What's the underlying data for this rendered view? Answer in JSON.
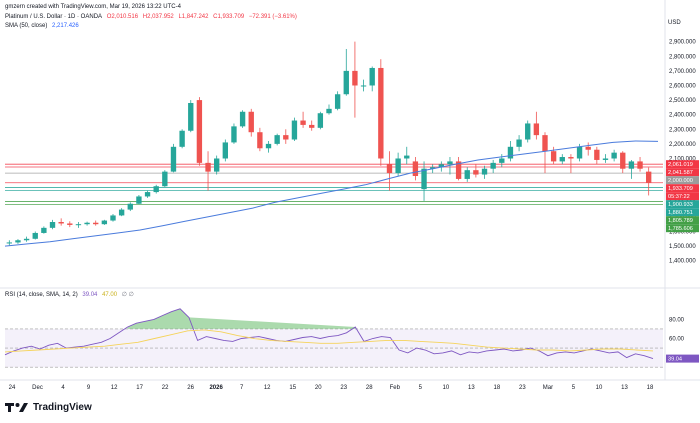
{
  "header": {
    "created_by": "gmzern created with TradingView.com, Mar 19, 2026 13:22 UTC-4",
    "symbol": "Platinum / U.S. Dollar · 1D · OANDA",
    "ohlc": {
      "open": "O2,010.516",
      "high": "H2,037.952",
      "low": "L1,847.242",
      "close": "C1,933.709",
      "change": "−72.391 (−3.61%)"
    },
    "sma_label": "SMA (50, close)",
    "sma_value": "2,217.426",
    "rsi_label": "RSI (14, close, SMA, 14, 2)",
    "rsi_value": "39.04",
    "rsi_sma_value": "47.00",
    "rsi_extra": "∅ ∅"
  },
  "currency": "USD",
  "brand": "TradingView",
  "colors": {
    "up": "#26a69a",
    "down": "#ef5350",
    "sma": "#4a7bdc",
    "rsi": "#7e57c2",
    "rsi_sma": "#f5d35a"
  },
  "chart_data": {
    "type": "candlestick",
    "price_axis_ticks": [
      1400,
      1500,
      1600,
      1700,
      1800,
      1900,
      2000,
      2100,
      2200,
      2300,
      2400,
      2500,
      2600,
      2700,
      2800,
      2900
    ],
    "price_axis_tick_labels": [
      "1,400.000",
      "1,500.000",
      "1,600.000",
      "1,700.000",
      "1,800.000",
      "1,900.000",
      "2,000.000",
      "2,100.000",
      "2,200.000",
      "2,300.000",
      "2,400.000",
      "2,500.000",
      "2,600.000",
      "2,700.000",
      "2,800.000",
      "2,900.000"
    ],
    "ylim": [
      1350,
      2980
    ],
    "time_axis_labels": [
      "24",
      "Dec",
      "4",
      "9",
      "12",
      "17",
      "22",
      "26",
      "2026",
      "7",
      "12",
      "15",
      "20",
      "23",
      "28",
      "Feb",
      "5",
      "10",
      "13",
      "18",
      "23",
      "Mar",
      "5",
      "10",
      "13",
      "18"
    ],
    "candles": [
      {
        "o": 1520,
        "h": 1540,
        "l": 1505,
        "c": 1525
      },
      {
        "o": 1525,
        "h": 1548,
        "l": 1515,
        "c": 1540
      },
      {
        "o": 1540,
        "h": 1565,
        "l": 1530,
        "c": 1550
      },
      {
        "o": 1550,
        "h": 1600,
        "l": 1545,
        "c": 1590
      },
      {
        "o": 1590,
        "h": 1635,
        "l": 1585,
        "c": 1625
      },
      {
        "o": 1625,
        "h": 1680,
        "l": 1615,
        "c": 1665
      },
      {
        "o": 1665,
        "h": 1690,
        "l": 1640,
        "c": 1655
      },
      {
        "o": 1655,
        "h": 1670,
        "l": 1630,
        "c": 1645
      },
      {
        "o": 1645,
        "h": 1665,
        "l": 1625,
        "c": 1650
      },
      {
        "o": 1650,
        "h": 1668,
        "l": 1640,
        "c": 1660
      },
      {
        "o": 1660,
        "h": 1675,
        "l": 1640,
        "c": 1650
      },
      {
        "o": 1650,
        "h": 1680,
        "l": 1645,
        "c": 1675
      },
      {
        "o": 1675,
        "h": 1720,
        "l": 1668,
        "c": 1710
      },
      {
        "o": 1710,
        "h": 1760,
        "l": 1705,
        "c": 1750
      },
      {
        "o": 1750,
        "h": 1800,
        "l": 1740,
        "c": 1790
      },
      {
        "o": 1790,
        "h": 1850,
        "l": 1785,
        "c": 1840
      },
      {
        "o": 1840,
        "h": 1880,
        "l": 1830,
        "c": 1870
      },
      {
        "o": 1870,
        "h": 1920,
        "l": 1860,
        "c": 1910
      },
      {
        "o": 1910,
        "h": 2020,
        "l": 1905,
        "c": 2010
      },
      {
        "o": 2010,
        "h": 2200,
        "l": 2005,
        "c": 2180
      },
      {
        "o": 2180,
        "h": 2300,
        "l": 2170,
        "c": 2290
      },
      {
        "o": 2290,
        "h": 2500,
        "l": 2280,
        "c": 2480
      },
      {
        "o": 2500,
        "h": 2520,
        "l": 2050,
        "c": 2070
      },
      {
        "o": 2070,
        "h": 2150,
        "l": 1880,
        "c": 2010
      },
      {
        "o": 2010,
        "h": 2120,
        "l": 1990,
        "c": 2100
      },
      {
        "o": 2100,
        "h": 2230,
        "l": 2080,
        "c": 2210
      },
      {
        "o": 2210,
        "h": 2340,
        "l": 2200,
        "c": 2320
      },
      {
        "o": 2320,
        "h": 2430,
        "l": 2310,
        "c": 2420
      },
      {
        "o": 2420,
        "h": 2440,
        "l": 2250,
        "c": 2280
      },
      {
        "o": 2280,
        "h": 2310,
        "l": 2150,
        "c": 2170
      },
      {
        "o": 2170,
        "h": 2220,
        "l": 2140,
        "c": 2200
      },
      {
        "o": 2200,
        "h": 2270,
        "l": 2190,
        "c": 2260
      },
      {
        "o": 2260,
        "h": 2300,
        "l": 2200,
        "c": 2230
      },
      {
        "o": 2230,
        "h": 2380,
        "l": 2220,
        "c": 2360
      },
      {
        "o": 2360,
        "h": 2420,
        "l": 2310,
        "c": 2330
      },
      {
        "o": 2330,
        "h": 2360,
        "l": 2290,
        "c": 2310
      },
      {
        "o": 2310,
        "h": 2420,
        "l": 2300,
        "c": 2410
      },
      {
        "o": 2410,
        "h": 2470,
        "l": 2400,
        "c": 2440
      },
      {
        "o": 2440,
        "h": 2560,
        "l": 2430,
        "c": 2540
      },
      {
        "o": 2540,
        "h": 2850,
        "l": 2530,
        "c": 2700
      },
      {
        "o": 2700,
        "h": 2900,
        "l": 2380,
        "c": 2600
      },
      {
        "o": 2600,
        "h": 2640,
        "l": 2560,
        "c": 2600
      },
      {
        "o": 2600,
        "h": 2730,
        "l": 2560,
        "c": 2720
      },
      {
        "o": 2720,
        "h": 2780,
        "l": 2050,
        "c": 2100
      },
      {
        "o": 2060,
        "h": 2150,
        "l": 1880,
        "c": 2000
      },
      {
        "o": 2000,
        "h": 2140,
        "l": 1980,
        "c": 2100
      },
      {
        "o": 2100,
        "h": 2180,
        "l": 2060,
        "c": 2120
      },
      {
        "o": 2080,
        "h": 2110,
        "l": 1950,
        "c": 1980
      },
      {
        "o": 1890,
        "h": 2080,
        "l": 1810,
        "c": 2030
      },
      {
        "o": 2030,
        "h": 2060,
        "l": 2000,
        "c": 2040
      },
      {
        "o": 2040,
        "h": 2080,
        "l": 2010,
        "c": 2060
      },
      {
        "o": 2060,
        "h": 2110,
        "l": 1990,
        "c": 2080
      },
      {
        "o": 2080,
        "h": 2110,
        "l": 1950,
        "c": 1960
      },
      {
        "o": 1960,
        "h": 2040,
        "l": 1940,
        "c": 2020
      },
      {
        "o": 2020,
        "h": 2060,
        "l": 1970,
        "c": 1990
      },
      {
        "o": 1990,
        "h": 2050,
        "l": 1960,
        "c": 2030
      },
      {
        "o": 2030,
        "h": 2090,
        "l": 2000,
        "c": 2070
      },
      {
        "o": 2070,
        "h": 2130,
        "l": 2040,
        "c": 2100
      },
      {
        "o": 2100,
        "h": 2220,
        "l": 2080,
        "c": 2180
      },
      {
        "o": 2180,
        "h": 2260,
        "l": 2150,
        "c": 2230
      },
      {
        "o": 2230,
        "h": 2360,
        "l": 2210,
        "c": 2340
      },
      {
        "o": 2340,
        "h": 2420,
        "l": 2230,
        "c": 2260
      },
      {
        "o": 2260,
        "h": 2280,
        "l": 2000,
        "c": 2150
      },
      {
        "o": 2150,
        "h": 2180,
        "l": 2060,
        "c": 2080
      },
      {
        "o": 2080,
        "h": 2130,
        "l": 2060,
        "c": 2110
      },
      {
        "o": 2110,
        "h": 2130,
        "l": 2000,
        "c": 2100
      },
      {
        "o": 2100,
        "h": 2200,
        "l": 2080,
        "c": 2180
      },
      {
        "o": 2180,
        "h": 2210,
        "l": 2120,
        "c": 2160
      },
      {
        "o": 2160,
        "h": 2180,
        "l": 2060,
        "c": 2090
      },
      {
        "o": 2090,
        "h": 2130,
        "l": 2070,
        "c": 2100
      },
      {
        "o": 2100,
        "h": 2160,
        "l": 2080,
        "c": 2140
      },
      {
        "o": 2140,
        "h": 2150,
        "l": 2000,
        "c": 2030
      },
      {
        "o": 2030,
        "h": 2090,
        "l": 1960,
        "c": 2080
      },
      {
        "o": 2080,
        "h": 2110,
        "l": 2010,
        "c": 2030
      },
      {
        "o": 2010,
        "h": 2038,
        "l": 1847,
        "c": 1934
      }
    ],
    "sma": [
      1500,
      1515,
      1530,
      1550,
      1570,
      1590,
      1610,
      1640,
      1670,
      1700,
      1730,
      1760,
      1800,
      1830,
      1860,
      1890,
      1920,
      1960,
      2000,
      2030,
      2060,
      2090,
      2110,
      2130,
      2150,
      2170,
      2190,
      2210,
      2220,
      2217
    ],
    "price_lines": [
      {
        "value": 2061.019,
        "label": "2,061.019",
        "color": "#f23645"
      },
      {
        "value": 2041.587,
        "label": "2,041.587",
        "color": "#f23645"
      },
      {
        "value": 2000.0,
        "label": "2,000.000",
        "color": "#9c9c9c"
      },
      {
        "value": 1933.709,
        "label": "1,933.709",
        "color": "#f23645"
      },
      {
        "value": 1900.933,
        "label": "1,900.933",
        "color": "#26a69a"
      },
      {
        "value": 1880.751,
        "label": "1,880.751",
        "color": "#26a69a"
      },
      {
        "value": 1805.789,
        "label": "1,805.789",
        "color": "#43a047"
      },
      {
        "value": 1785.606,
        "label": "1,785.606",
        "color": "#43a047"
      }
    ],
    "countdown": "05:37:22",
    "rsi_axis_ticks": [
      40,
      60,
      80
    ],
    "rsi_axis_tick_labels": [
      "40.00",
      "60.00",
      "80.00"
    ],
    "rsi_ylim": [
      25,
      95
    ],
    "rsi_band": [
      30,
      70
    ],
    "rsi": [
      43,
      47,
      50,
      52,
      49,
      53,
      55,
      50,
      51,
      52,
      54,
      56,
      60,
      66,
      72,
      76,
      78,
      80,
      84,
      88,
      91,
      82,
      58,
      62,
      60,
      58,
      57,
      60,
      61,
      62,
      60,
      58,
      57,
      59,
      61,
      62,
      60,
      62,
      63,
      66,
      72,
      57,
      60,
      62,
      61,
      48,
      45,
      50,
      48,
      44,
      45,
      47,
      43,
      46,
      45,
      47,
      48,
      49,
      47,
      48,
      50,
      47,
      42,
      45,
      46,
      45,
      47,
      49,
      47,
      45,
      46,
      40,
      44,
      42,
      39
    ],
    "rsi_sma": [
      46,
      47,
      48,
      49,
      50,
      51,
      52,
      54,
      56,
      60,
      64,
      68,
      69,
      67,
      63,
      60,
      58,
      57,
      56,
      55,
      55,
      56,
      57,
      58,
      58,
      57,
      56,
      55,
      53,
      51,
      50,
      49,
      48,
      48,
      47,
      48,
      49,
      49,
      48,
      47
    ]
  }
}
